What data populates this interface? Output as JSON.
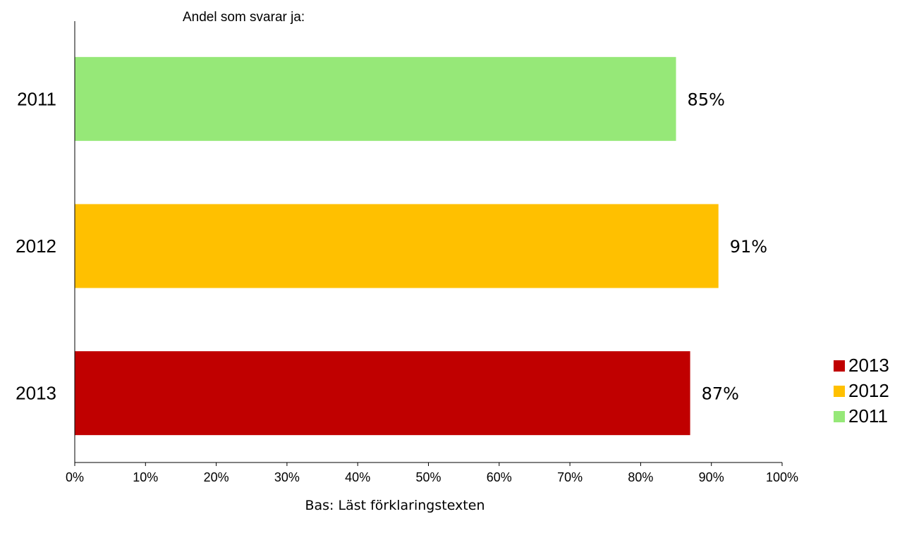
{
  "subtitle": "Andel som svarar ja:",
  "footnote": "Bas: Läst förklaringstexten",
  "chart_data": {
    "type": "bar",
    "orientation": "horizontal",
    "categories": [
      "2011",
      "2012",
      "2013"
    ],
    "values": [
      85,
      91,
      87
    ],
    "value_labels": [
      "85%",
      "91%",
      "87%"
    ],
    "colors": [
      "#96e878",
      "#ffc000",
      "#c00000"
    ],
    "xlim": [
      0,
      100
    ],
    "xticks": [
      "0%",
      "10%",
      "20%",
      "30%",
      "40%",
      "50%",
      "60%",
      "70%",
      "80%",
      "90%",
      "100%"
    ],
    "grid": false,
    "legend": {
      "placement": "right",
      "entries": [
        {
          "label": "2013",
          "color": "#c00000"
        },
        {
          "label": "2012",
          "color": "#ffc000"
        },
        {
          "label": "2011",
          "color": "#96e878"
        }
      ]
    }
  }
}
